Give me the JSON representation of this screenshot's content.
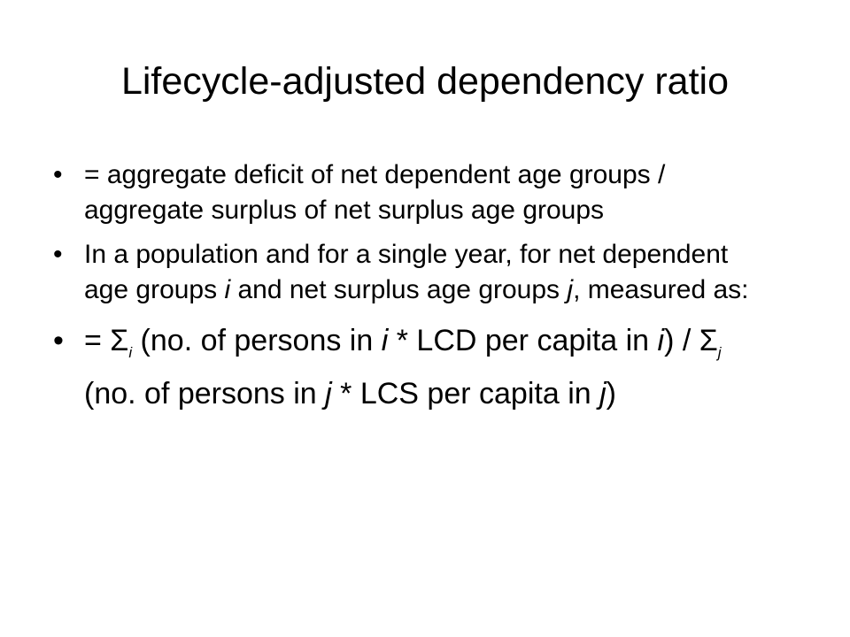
{
  "title": "Lifecycle-adjusted dependency ratio",
  "bullets": [
    {
      "runs": [
        {
          "text": "= aggregate deficit of net dependent age groups / aggregate surplus of net surplus age groups"
        }
      ]
    },
    {
      "runs": [
        {
          "text": "In a population and for a single year, for net dependent age groups "
        },
        {
          "text": "i",
          "style": "italic"
        },
        {
          "text": " and net surplus age groups "
        },
        {
          "text": "j",
          "style": "italic"
        },
        {
          "text": ", measured as:"
        }
      ]
    },
    {
      "runs": [
        {
          "text": "= Σ"
        },
        {
          "text": "i",
          "style": "sub"
        },
        {
          "text": " (no. of persons in "
        },
        {
          "text": "i",
          "style": "italic"
        },
        {
          "text": " * LCD per capita in "
        },
        {
          "text": "i",
          "style": "italic"
        },
        {
          "text": ") / Σ"
        },
        {
          "text": "j",
          "style": "sub"
        },
        {
          "text": " (no. of persons in "
        },
        {
          "text": "j",
          "style": "italic"
        },
        {
          "text": " * LCS per capita in "
        },
        {
          "text": "j",
          "style": "italic"
        },
        {
          "text": ")"
        }
      ]
    }
  ]
}
